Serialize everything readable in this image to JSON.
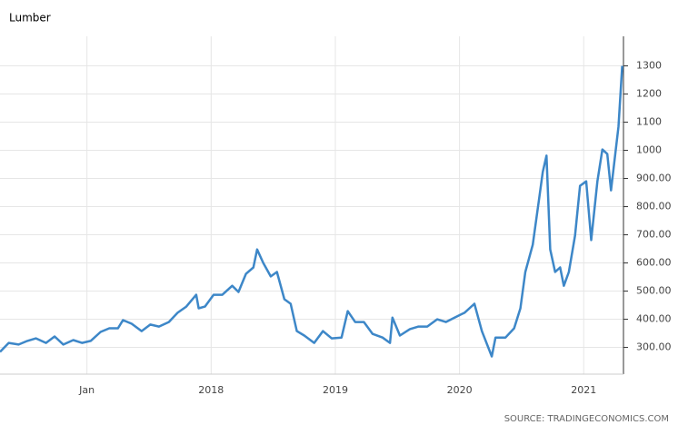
{
  "chart_data": {
    "type": "line",
    "title": "Lumber",
    "source": "SOURCE: TRADINGECONOMICS.COM",
    "x": [
      2016.3,
      2016.37,
      2016.45,
      2016.52,
      2016.59,
      2016.67,
      2016.74,
      2016.81,
      2016.89,
      2016.96,
      2017.03,
      2017.11,
      2017.18,
      2017.25,
      2017.29,
      2017.36,
      2017.44,
      2017.51,
      2017.58,
      2017.66,
      2017.73,
      2017.8,
      2017.88,
      2017.9,
      2017.95,
      2018.02,
      2018.09,
      2018.17,
      2018.22,
      2018.28,
      2018.34,
      2018.37,
      2018.42,
      2018.48,
      2018.53,
      2018.59,
      2018.64,
      2018.69,
      2018.75,
      2018.83,
      2018.9,
      2018.97,
      2019.05,
      2019.1,
      2019.16,
      2019.23,
      2019.3,
      2019.38,
      2019.44,
      2019.46,
      2019.52,
      2019.6,
      2019.67,
      2019.74,
      2019.82,
      2019.89,
      2019.96,
      2020.04,
      2020.12,
      2020.18,
      2020.26,
      2020.29,
      2020.37,
      2020.44,
      2020.49,
      2020.53,
      2020.59,
      2020.64,
      2020.67,
      2020.7,
      2020.73,
      2020.77,
      2020.81,
      2020.84,
      2020.88,
      2020.93,
      2020.97,
      2021.02,
      2021.06,
      2021.11,
      2021.15,
      2021.19,
      2021.22,
      2021.25,
      2021.28,
      2021.31
    ],
    "series": [
      {
        "name": "Lumber",
        "color": "#3d87c8",
        "values": [
          284,
          316,
          310,
          323,
          332,
          316,
          339,
          310,
          326,
          316,
          323,
          355,
          368,
          368,
          397,
          384,
          358,
          381,
          374,
          390,
          423,
          445,
          487,
          439,
          445,
          487,
          487,
          519,
          497,
          561,
          584,
          648,
          600,
          552,
          568,
          471,
          455,
          358,
          342,
          316,
          358,
          332,
          335,
          429,
          390,
          390,
          348,
          335,
          316,
          406,
          342,
          365,
          374,
          374,
          400,
          390,
          406,
          423,
          455,
          358,
          268,
          335,
          335,
          368,
          439,
          568,
          665,
          826,
          923,
          981,
          648,
          568,
          584,
          519,
          568,
          697,
          874,
          890,
          681,
          890,
          1003,
          987,
          858,
          971,
          1084,
          1300
        ]
      }
    ],
    "xlim": [
      2016.3,
      2021.32
    ],
    "xticks": [
      {
        "value": 2017,
        "label": "Jan"
      },
      2018,
      2019,
      2020,
      2021
    ],
    "ylim": [
      205,
      1405
    ],
    "yticks": [
      {
        "value": 300,
        "label": "300.00"
      },
      {
        "value": 400,
        "label": "400.00"
      },
      {
        "value": 500,
        "label": "500.00"
      },
      {
        "value": 600,
        "label": "600.00"
      },
      {
        "value": 700,
        "label": "700.00"
      },
      {
        "value": 800,
        "label": "800.00"
      },
      {
        "value": 900,
        "label": "900.00"
      },
      1000,
      1100,
      1200,
      1300
    ],
    "grid": true
  }
}
